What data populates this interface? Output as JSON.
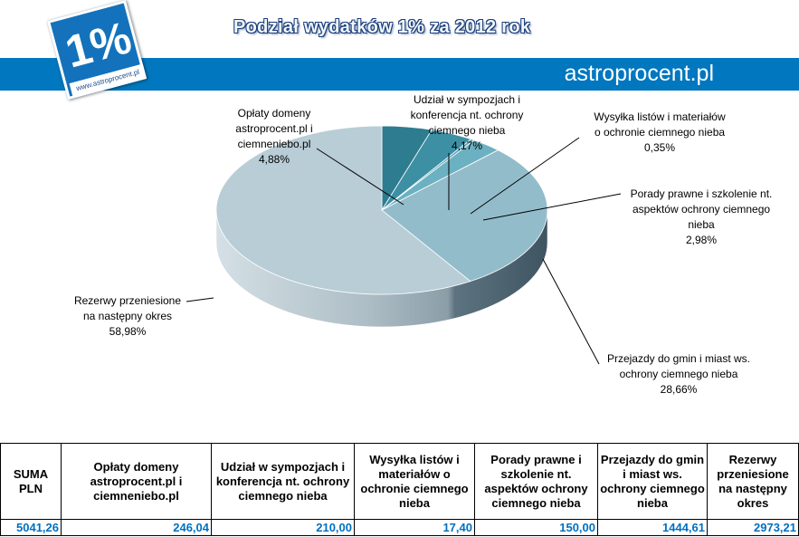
{
  "header": {
    "title": "Podział wydatków 1% za 2012 rok",
    "brand": "astroprocent.pl",
    "logo_text": "1%",
    "logo_url": "www.astroprocent.pl"
  },
  "chart_data": {
    "type": "pie",
    "title": "Podział wydatków 1% za 2012 rok",
    "slices": [
      {
        "label": "Opłaty domeny astroprocent.pl i ciemneniebo.pl",
        "value": 4.88,
        "value_label": "4,88%",
        "color": "#2e7c8f"
      },
      {
        "label": "Udział w sympozjach i konferencja nt. ochrony ciemnego nieba",
        "value": 4.17,
        "value_label": "4,17%",
        "color": "#3d90a4"
      },
      {
        "label": "Wysyłka listów i materiałów o ochronie ciemnego nieba",
        "value": 0.35,
        "value_label": "0,35%",
        "color": "#59a3b4"
      },
      {
        "label": "Porady prawne i szkolenie nt. aspektów ochrony ciemnego nieba",
        "value": 2.98,
        "value_label": "2,98%",
        "color": "#6cb1c1"
      },
      {
        "label": "Przejazdy do gmin i miast ws. ochrony ciemnego nieba",
        "value": 28.66,
        "value_label": "28,66%",
        "color": "#93bccb"
      },
      {
        "label": "Rezerwy przeniesione na następny okres",
        "value": 58.98,
        "value_label": "58,98%",
        "color": "#b8cdd6"
      }
    ],
    "callouts": [
      {
        "lines": [
          "Opłaty domeny",
          "astroprocent.pl i",
          "ciemneniebo.pl",
          "4,88%"
        ]
      },
      {
        "lines": [
          "Udział w sympozjach i",
          "konferencja nt. ochrony",
          "ciemnego nieba",
          "4,17%"
        ]
      },
      {
        "lines": [
          "Wysyłka listów  i materiałów",
          "o ochronie ciemnego nieba",
          "0,35%"
        ]
      },
      {
        "lines": [
          "Porady prawne i szkolenie nt.",
          "aspektów ochrony ciemnego",
          "nieba",
          "2,98%"
        ]
      },
      {
        "lines": [
          "Przejazdy do gmin i miast ws.",
          "ochrony ciemnego nieba",
          "28,66%"
        ]
      },
      {
        "lines": [
          "Rezerwy przeniesione",
          "na następny okres",
          "58,98%"
        ]
      }
    ]
  },
  "table": {
    "headers": [
      "SUMA PLN",
      "Opłaty domeny astroprocent.pl i ciemneniebo.pl",
      "Udział w sympozjach i konferencja nt. ochrony ciemnego nieba",
      "Wysyłka listów i materiałów o ochronie ciemnego nieba",
      "Porady prawne i szkolenie nt. aspektów ochrony ciemnego nieba",
      "Przejazdy do gmin i miast ws. ochrony ciemnego nieba",
      "Rezerwy przeniesione na następny okres"
    ],
    "values": [
      "5041,26",
      "246,04",
      "210,00",
      "17,40",
      "150,00",
      "1444,61",
      "2973,21"
    ]
  }
}
